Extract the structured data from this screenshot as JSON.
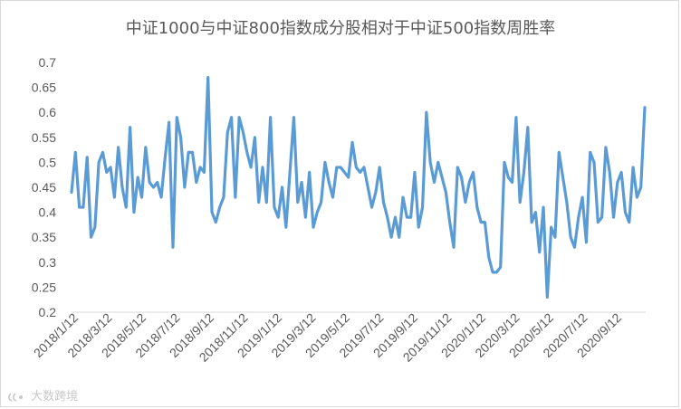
{
  "chart_data": {
    "type": "line",
    "title": "中证1000与中证800指数成分股相对于中证500指数周胜率",
    "xlabel": "",
    "ylabel": "",
    "ylim": [
      0.2,
      0.7
    ],
    "yticks": [
      "0.2",
      "0.25",
      "0.3",
      "0.35",
      "0.4",
      "0.45",
      "0.5",
      "0.55",
      "0.6",
      "0.65",
      "0.7"
    ],
    "xticks": [
      "2018/1/12",
      "2018/3/12",
      "2018/5/12",
      "2018/7/12",
      "2018/9/12",
      "2018/11/12",
      "2019/1/12",
      "2019/3/12",
      "2019/5/12",
      "2019/7/12",
      "2019/9/12",
      "2019/11/12",
      "2020/1/12",
      "2020/3/12",
      "2020/5/12",
      "2020/7/12",
      "2020/9/12"
    ],
    "grid": false,
    "legend": "none",
    "color": "#5B9BD5",
    "series": [
      {
        "name": "",
        "values": [
          0.44,
          0.52,
          0.41,
          0.41,
          0.51,
          0.35,
          0.37,
          0.5,
          0.52,
          0.48,
          0.49,
          0.43,
          0.53,
          0.45,
          0.41,
          0.57,
          0.4,
          0.47,
          0.43,
          0.53,
          0.46,
          0.45,
          0.46,
          0.43,
          0.51,
          0.58,
          0.33,
          0.59,
          0.55,
          0.45,
          0.52,
          0.52,
          0.46,
          0.49,
          0.48,
          0.67,
          0.4,
          0.38,
          0.41,
          0.43,
          0.56,
          0.59,
          0.43,
          0.59,
          0.56,
          0.52,
          0.49,
          0.55,
          0.42,
          0.49,
          0.42,
          0.59,
          0.41,
          0.39,
          0.45,
          0.37,
          0.48,
          0.59,
          0.42,
          0.46,
          0.39,
          0.48,
          0.37,
          0.4,
          0.42,
          0.5,
          0.46,
          0.43,
          0.49,
          0.49,
          0.48,
          0.47,
          0.54,
          0.49,
          0.48,
          0.49,
          0.45,
          0.41,
          0.44,
          0.49,
          0.42,
          0.39,
          0.35,
          0.39,
          0.35,
          0.43,
          0.39,
          0.39,
          0.48,
          0.37,
          0.41,
          0.6,
          0.5,
          0.46,
          0.5,
          0.47,
          0.44,
          0.38,
          0.33,
          0.49,
          0.47,
          0.42,
          0.46,
          0.48,
          0.41,
          0.38,
          0.38,
          0.31,
          0.28,
          0.28,
          0.29,
          0.5,
          0.47,
          0.46,
          0.59,
          0.42,
          0.48,
          0.57,
          0.38,
          0.4,
          0.32,
          0.41,
          0.23,
          0.37,
          0.35,
          0.52,
          0.47,
          0.42,
          0.35,
          0.33,
          0.39,
          0.43,
          0.34,
          0.52,
          0.5,
          0.38,
          0.39,
          0.53,
          0.48,
          0.39,
          0.46,
          0.48,
          0.4,
          0.38,
          0.49,
          0.43,
          0.45,
          0.61
        ]
      }
    ]
  },
  "watermark": {
    "text": "大数跨境",
    "icon": "brand-logo-icon"
  }
}
